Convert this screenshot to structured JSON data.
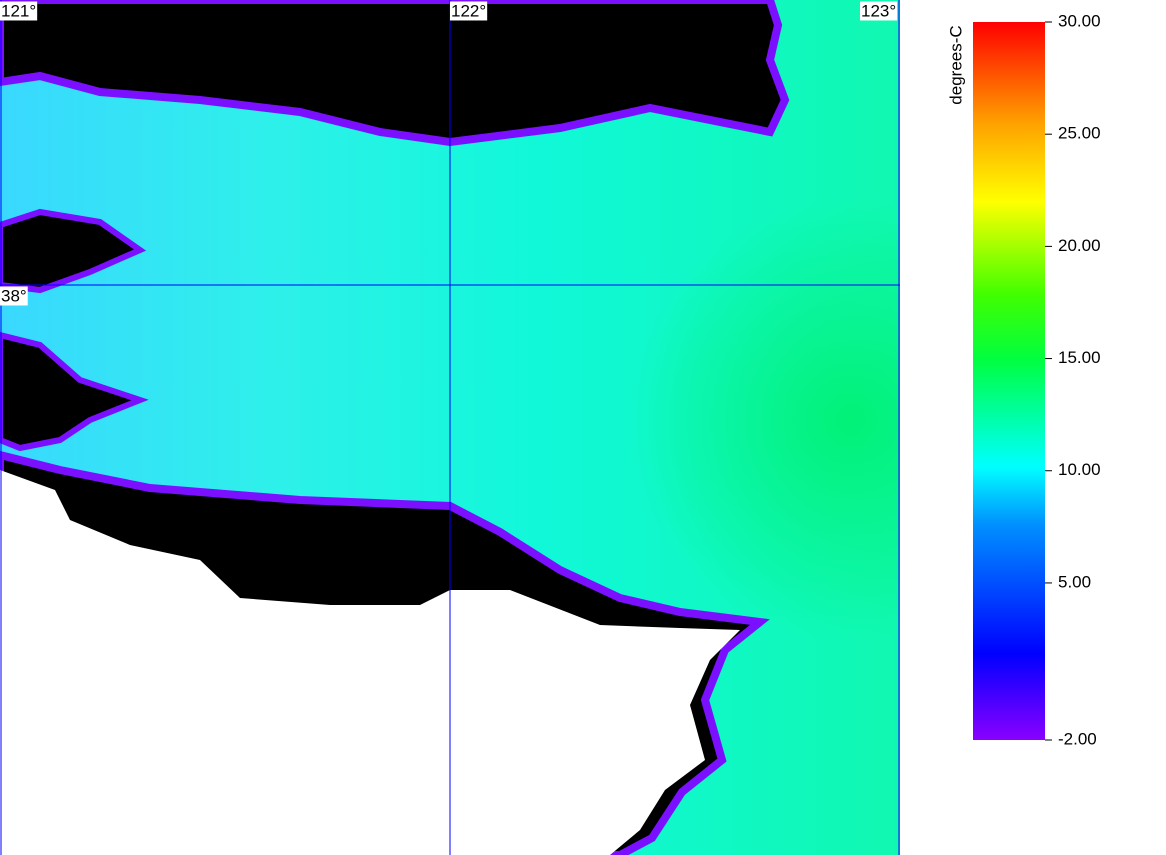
{
  "map": {
    "lonlim": [
      121,
      123
    ],
    "latlim": [
      37.0,
      38.5
    ],
    "lon_ticks": [
      {
        "value": 121,
        "label": "121°"
      },
      {
        "value": 122,
        "label": "122°"
      },
      {
        "value": 123,
        "label": "123°"
      }
    ],
    "lat_ticks": [
      {
        "value": 38,
        "label": "38°"
      }
    ]
  },
  "colorbar": {
    "title": "degrees-C",
    "lim": [
      -2,
      30
    ],
    "ticks": [
      {
        "value": 30,
        "label": "30.00"
      },
      {
        "value": 25,
        "label": "25.00"
      },
      {
        "value": 20,
        "label": "20.00"
      },
      {
        "value": 15,
        "label": "15.00"
      },
      {
        "value": 10,
        "label": "10.00"
      },
      {
        "value": 5,
        "label": "5.00"
      },
      {
        "value": -2,
        "label": "-2.00"
      }
    ]
  }
}
